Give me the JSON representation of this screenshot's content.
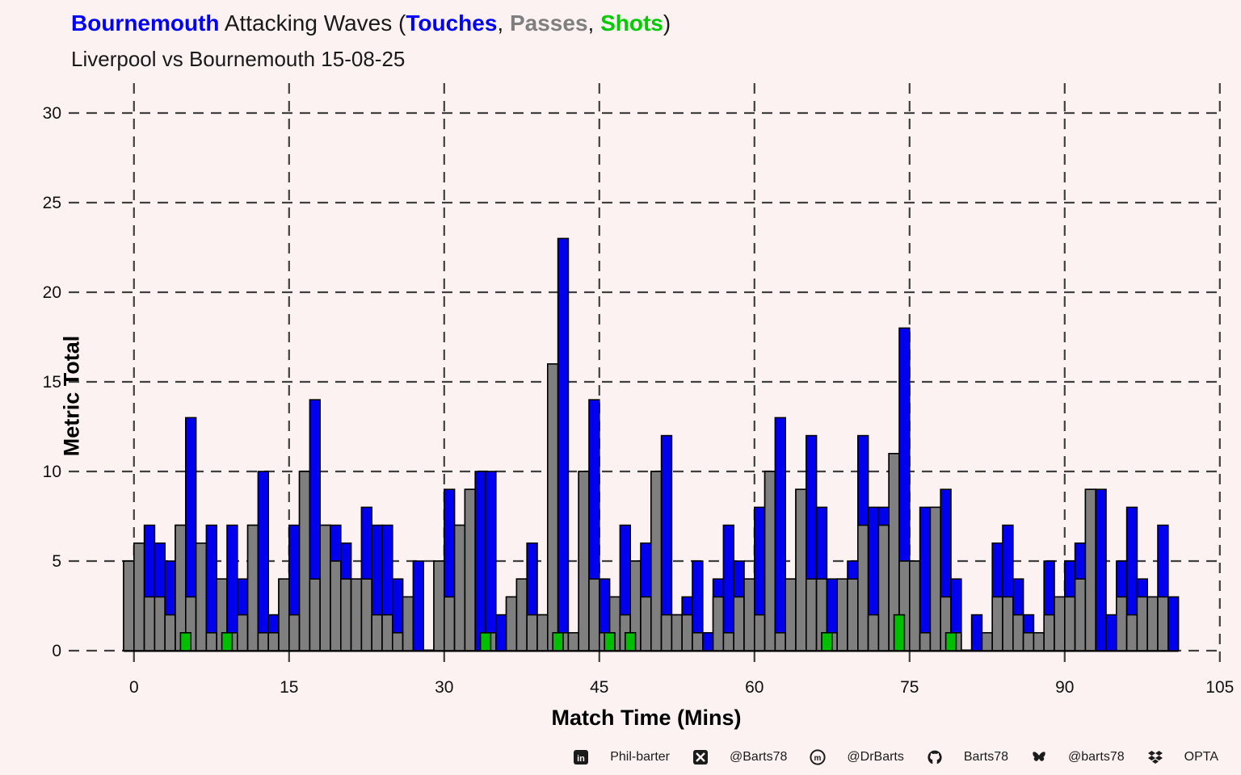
{
  "header": {
    "title_parts": [
      {
        "text": "Bournemouth",
        "color": "#0000FF",
        "bold": true
      },
      {
        "text": " Attacking Waves (",
        "color": "#1a1a1a",
        "bold": false
      },
      {
        "text": "Touches",
        "color": "#0000FF",
        "bold": true
      },
      {
        "text": ", ",
        "color": "#1a1a1a",
        "bold": false
      },
      {
        "text": "Passes",
        "color": "#7F7F7F",
        "bold": true
      },
      {
        "text": ", ",
        "color": "#1a1a1a",
        "bold": false
      },
      {
        "text": "Shots",
        "color": "#00CC00",
        "bold": true
      },
      {
        "text": ")",
        "color": "#1a1a1a",
        "bold": false
      }
    ],
    "subtitle": "Liverpool vs Bournemouth 15-08-25"
  },
  "chart_data": {
    "type": "bar",
    "title": "Bournemouth Attacking Waves (Touches, Passes, Shots)",
    "subtitle": "Liverpool vs Bournemouth 15-08-25",
    "xlabel": "Match Time (Mins)",
    "ylabel": "Metric Total",
    "x_ticks": [
      0,
      15,
      30,
      45,
      60,
      75,
      90,
      105
    ],
    "y_ticks": [
      0,
      5,
      10,
      15,
      20,
      25,
      30
    ],
    "ylim": [
      0,
      30
    ],
    "xlim": [
      -7,
      106
    ],
    "grid": "dashed",
    "legend_position": "in-title",
    "series_names": [
      "Touches",
      "Passes",
      "Shots"
    ],
    "colors": {
      "touches": "#0000EE",
      "passes": "#7F7F7F",
      "shots": "#00BE00",
      "outline": "#000000",
      "grid": "#404040",
      "background": "#FCF2F2"
    },
    "bars_minute_touches_passes": [
      [
        0,
        5,
        5
      ],
      [
        1,
        6,
        6
      ],
      [
        2,
        7,
        3
      ],
      [
        3,
        6,
        3
      ],
      [
        4,
        5,
        2
      ],
      [
        5,
        7,
        7
      ],
      [
        6,
        13,
        3
      ],
      [
        7,
        6,
        6
      ],
      [
        8,
        7,
        1
      ],
      [
        9,
        4,
        4
      ],
      [
        10,
        7,
        1
      ],
      [
        11,
        4,
        2
      ],
      [
        12,
        7,
        7
      ],
      [
        13,
        10,
        1
      ],
      [
        14,
        2,
        1
      ],
      [
        15,
        4,
        4
      ],
      [
        16,
        7,
        2
      ],
      [
        17,
        10,
        10
      ],
      [
        18,
        14,
        4
      ],
      [
        19,
        7,
        7
      ],
      [
        20,
        7,
        5
      ],
      [
        21,
        6,
        4
      ],
      [
        22,
        4,
        4
      ],
      [
        23,
        8,
        4
      ],
      [
        24,
        7,
        2
      ],
      [
        25,
        7,
        2
      ],
      [
        26,
        4,
        1
      ],
      [
        27,
        3,
        3
      ],
      [
        28,
        5,
        0
      ],
      [
        30,
        5,
        5
      ],
      [
        31,
        9,
        3
      ],
      [
        32,
        7,
        7
      ],
      [
        33,
        9,
        9
      ],
      [
        34,
        10,
        0
      ],
      [
        35,
        10,
        1
      ],
      [
        36,
        2,
        0
      ],
      [
        37,
        3,
        3
      ],
      [
        38,
        4,
        4
      ],
      [
        39,
        6,
        2
      ],
      [
        40,
        2,
        2
      ],
      [
        41,
        16,
        16
      ],
      [
        42,
        23,
        1
      ],
      [
        43,
        1,
        1
      ],
      [
        44,
        10,
        10
      ],
      [
        45,
        14,
        4
      ],
      [
        46,
        4,
        1
      ],
      [
        47,
        3,
        3
      ],
      [
        48,
        7,
        2
      ],
      [
        49,
        5,
        5
      ],
      [
        50,
        6,
        3
      ],
      [
        51,
        10,
        10
      ],
      [
        52,
        12,
        2
      ],
      [
        53,
        2,
        2
      ],
      [
        54,
        3,
        2
      ],
      [
        55,
        5,
        1
      ],
      [
        56,
        1,
        0
      ],
      [
        57,
        4,
        3
      ],
      [
        58,
        7,
        1
      ],
      [
        59,
        5,
        3
      ],
      [
        60,
        4,
        4
      ],
      [
        61,
        8,
        2
      ],
      [
        62,
        10,
        10
      ],
      [
        63,
        13,
        1
      ],
      [
        64,
        4,
        4
      ],
      [
        65,
        9,
        9
      ],
      [
        66,
        12,
        4
      ],
      [
        67,
        8,
        4
      ],
      [
        68,
        4,
        1
      ],
      [
        69,
        4,
        4
      ],
      [
        70,
        5,
        4
      ],
      [
        71,
        12,
        7
      ],
      [
        72,
        8,
        2
      ],
      [
        73,
        8,
        7
      ],
      [
        74,
        11,
        11
      ],
      [
        75,
        18,
        5
      ],
      [
        76,
        5,
        5
      ],
      [
        77,
        8,
        1
      ],
      [
        78,
        8,
        8
      ],
      [
        79,
        9,
        3
      ],
      [
        80,
        4,
        1
      ],
      [
        82,
        2,
        0
      ],
      [
        83,
        1,
        1
      ],
      [
        84,
        6,
        3
      ],
      [
        85,
        7,
        3
      ],
      [
        86,
        4,
        2
      ],
      [
        87,
        2,
        1
      ],
      [
        88,
        1,
        1
      ],
      [
        89,
        5,
        2
      ],
      [
        90,
        3,
        3
      ],
      [
        91,
        5,
        3
      ],
      [
        92,
        6,
        4
      ],
      [
        93,
        9,
        9
      ],
      [
        94,
        9,
        0
      ],
      [
        95,
        2,
        0
      ],
      [
        96,
        5,
        3
      ],
      [
        97,
        8,
        2
      ],
      [
        98,
        4,
        3
      ],
      [
        99,
        3,
        3
      ],
      [
        100,
        7,
        3
      ],
      [
        101,
        3,
        0
      ]
    ],
    "shots_minute_count": [
      [
        5,
        1
      ],
      [
        9,
        1
      ],
      [
        34,
        1
      ],
      [
        41,
        1
      ],
      [
        46,
        1
      ],
      [
        48,
        1
      ],
      [
        67,
        1
      ],
      [
        74,
        2
      ],
      [
        79,
        1
      ]
    ]
  },
  "footer": {
    "items": [
      {
        "icon": "linkedin-icon",
        "label": "Phil-barter"
      },
      {
        "icon": "x-icon",
        "label": "@Barts78"
      },
      {
        "icon": "mastodon-icon",
        "label": "@DrBarts"
      },
      {
        "icon": "github-icon",
        "label": "Barts78"
      },
      {
        "icon": "bluesky-icon",
        "label": "@barts78"
      },
      {
        "icon": "dropbox-icon",
        "label": "OPTA"
      }
    ]
  }
}
